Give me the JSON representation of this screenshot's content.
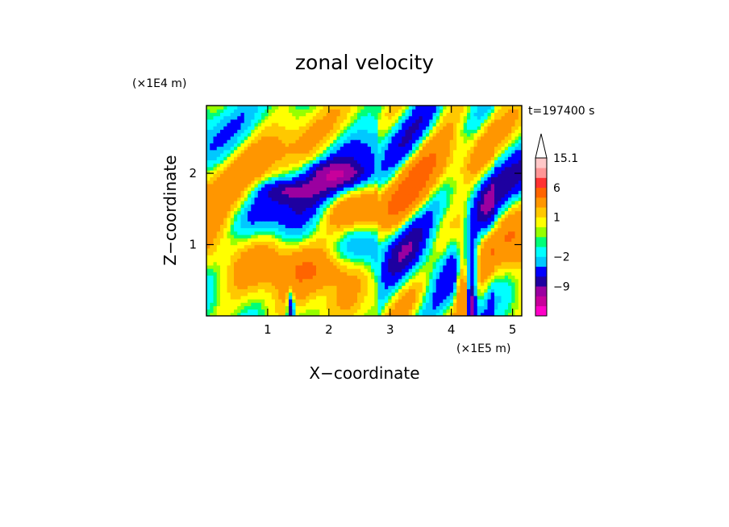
{
  "chart_data": {
    "type": "heatmap",
    "title": "zonal velocity",
    "xlabel": "X−coordinate",
    "ylabel": "Z−coordinate",
    "x_unit": "(×1E5 m)",
    "y_unit": "(×1E4 m)",
    "time_label": "t=197400 s",
    "xlim": [
      0,
      5.15
    ],
    "ylim": [
      0,
      2.95
    ],
    "x_ticks": [
      {
        "value": 1,
        "label": "1"
      },
      {
        "value": 2,
        "label": "2"
      },
      {
        "value": 3,
        "label": "3"
      },
      {
        "value": 4,
        "label": "4"
      },
      {
        "value": 5,
        "label": "5"
      }
    ],
    "y_ticks": [
      {
        "value": 1,
        "label": "1"
      },
      {
        "value": 2,
        "label": "2"
      }
    ],
    "colorbar": {
      "levels": [
        {
          "value": -15,
          "color": "#ff00c8"
        },
        {
          "value": -12,
          "color": "#c8009b"
        },
        {
          "value": -9,
          "color": "#9b00a0"
        },
        {
          "value": -6,
          "color": "#1e00a0"
        },
        {
          "value": -4,
          "color": "#0000ff"
        },
        {
          "value": -2,
          "color": "#00c8ff"
        },
        {
          "value": -1,
          "color": "#00ffff"
        },
        {
          "value": 0,
          "color": "#00ff78"
        },
        {
          "value": 0.5,
          "color": "#96ff00"
        },
        {
          "value": 1,
          "color": "#ffff00"
        },
        {
          "value": 2,
          "color": "#ffc800"
        },
        {
          "value": 3,
          "color": "#ff9600"
        },
        {
          "value": 6,
          "color": "#ff6400"
        },
        {
          "value": 9,
          "color": "#ff3232"
        },
        {
          "value": 12,
          "color": "#ff9696"
        },
        {
          "value": 15.1,
          "color": "#ffc8c8"
        }
      ],
      "tick_labels": [
        {
          "value": 15.1,
          "label": "15.1"
        },
        {
          "value": 6,
          "label": "6"
        },
        {
          "value": 1,
          "label": "1"
        },
        {
          "value": -2,
          "label": "−2"
        },
        {
          "value": -9,
          "label": "−9"
        }
      ],
      "extend_max_color": "#ffffff"
    }
  }
}
